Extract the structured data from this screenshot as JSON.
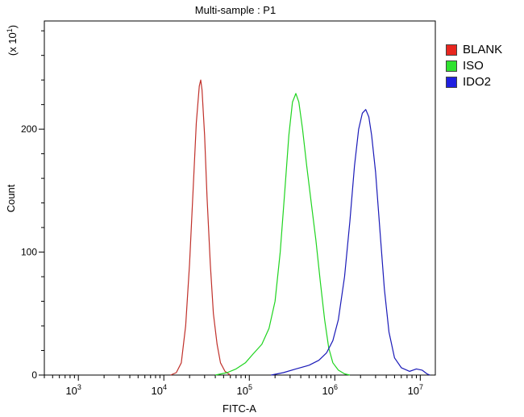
{
  "chart_data": {
    "type": "line",
    "title": "Multi-sample : P1",
    "xlabel": "FITC-A",
    "ylabel": "Count",
    "y_multiplier_label": "(x 10",
    "y_multiplier_exp": "1",
    "x_scale": "log",
    "xlim": [
      400,
      15000000
    ],
    "ylim": [
      0,
      288
    ],
    "x_ticks": [
      {
        "value": 1000,
        "base": "10",
        "exp": "3"
      },
      {
        "value": 10000,
        "base": "10",
        "exp": "4"
      },
      {
        "value": 100000,
        "base": "10",
        "exp": "5"
      },
      {
        "value": 1000000,
        "base": "10",
        "exp": "6"
      },
      {
        "value": 10000000,
        "base": "10",
        "exp": "7"
      }
    ],
    "y_ticks": [
      {
        "value": 0,
        "label": "0"
      },
      {
        "value": 100,
        "label": "100"
      },
      {
        "value": 200,
        "label": "200"
      }
    ],
    "legend_position": "right",
    "series": [
      {
        "name": "BLANK",
        "color": "#c0302a",
        "points": [
          [
            12000,
            0
          ],
          [
            14000,
            2
          ],
          [
            16000,
            10
          ],
          [
            18000,
            40
          ],
          [
            20000,
            90
          ],
          [
            22000,
            150
          ],
          [
            24000,
            205
          ],
          [
            26000,
            235
          ],
          [
            27000,
            240
          ],
          [
            28000,
            232
          ],
          [
            30000,
            195
          ],
          [
            32000,
            145
          ],
          [
            35000,
            90
          ],
          [
            38000,
            50
          ],
          [
            42000,
            25
          ],
          [
            46000,
            10
          ],
          [
            52000,
            3
          ],
          [
            60000,
            0
          ]
        ]
      },
      {
        "name": "ISO",
        "color": "#1fd41f",
        "points": [
          [
            40000,
            0
          ],
          [
            55000,
            2
          ],
          [
            70000,
            5
          ],
          [
            90000,
            10
          ],
          [
            110000,
            17
          ],
          [
            140000,
            25
          ],
          [
            170000,
            38
          ],
          [
            200000,
            60
          ],
          [
            230000,
            100
          ],
          [
            260000,
            150
          ],
          [
            290000,
            195
          ],
          [
            320000,
            222
          ],
          [
            350000,
            229
          ],
          [
            380000,
            222
          ],
          [
            420000,
            200
          ],
          [
            470000,
            170
          ],
          [
            530000,
            140
          ],
          [
            600000,
            110
          ],
          [
            680000,
            75
          ],
          [
            760000,
            45
          ],
          [
            850000,
            22
          ],
          [
            950000,
            10
          ],
          [
            1100000,
            4
          ],
          [
            1300000,
            1
          ],
          [
            1500000,
            0
          ]
        ]
      },
      {
        "name": "IDO2",
        "color": "#1a1ab8",
        "points": [
          [
            180000,
            0
          ],
          [
            250000,
            2
          ],
          [
            350000,
            5
          ],
          [
            500000,
            8
          ],
          [
            650000,
            12
          ],
          [
            800000,
            18
          ],
          [
            950000,
            28
          ],
          [
            1100000,
            45
          ],
          [
            1300000,
            80
          ],
          [
            1500000,
            125
          ],
          [
            1700000,
            170
          ],
          [
            1900000,
            200
          ],
          [
            2100000,
            213
          ],
          [
            2300000,
            216
          ],
          [
            2500000,
            210
          ],
          [
            2700000,
            195
          ],
          [
            3000000,
            165
          ],
          [
            3400000,
            115
          ],
          [
            3800000,
            70
          ],
          [
            4300000,
            35
          ],
          [
            5000000,
            14
          ],
          [
            6000000,
            6
          ],
          [
            7500000,
            3
          ],
          [
            9000000,
            5
          ],
          [
            10500000,
            4
          ],
          [
            12000000,
            1
          ],
          [
            13000000,
            0
          ]
        ]
      }
    ]
  }
}
